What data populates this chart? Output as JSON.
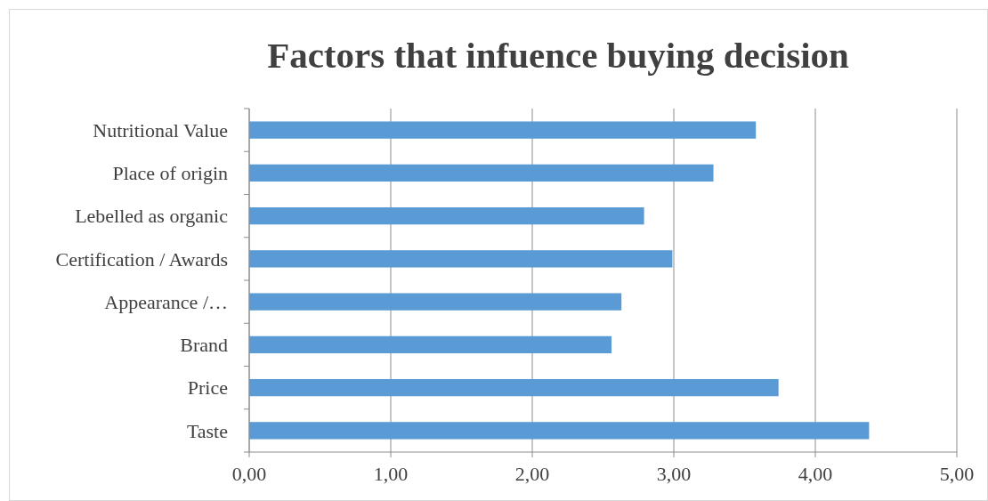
{
  "chart_data": {
    "type": "bar",
    "orientation": "horizontal",
    "title": "Factors that infuence buying decision",
    "categories": [
      "Nutritional Value",
      "Place of origin",
      "Lebelled as organic",
      "Certification / Awards",
      "Appearance /…",
      "Brand",
      "Price",
      "Taste"
    ],
    "values": [
      3.58,
      3.28,
      2.79,
      2.99,
      2.63,
      2.56,
      3.74,
      4.38
    ],
    "color": "#5b9bd5",
    "xlim": [
      0,
      5
    ],
    "xticks": [
      {
        "value": 0,
        "label": "0,00"
      },
      {
        "value": 1,
        "label": "1,00"
      },
      {
        "value": 2,
        "label": "2,00"
      },
      {
        "value": 3,
        "label": "3,00"
      },
      {
        "value": 4,
        "label": "4,00"
      },
      {
        "value": 5,
        "label": "5,00"
      }
    ],
    "grid": "x"
  }
}
